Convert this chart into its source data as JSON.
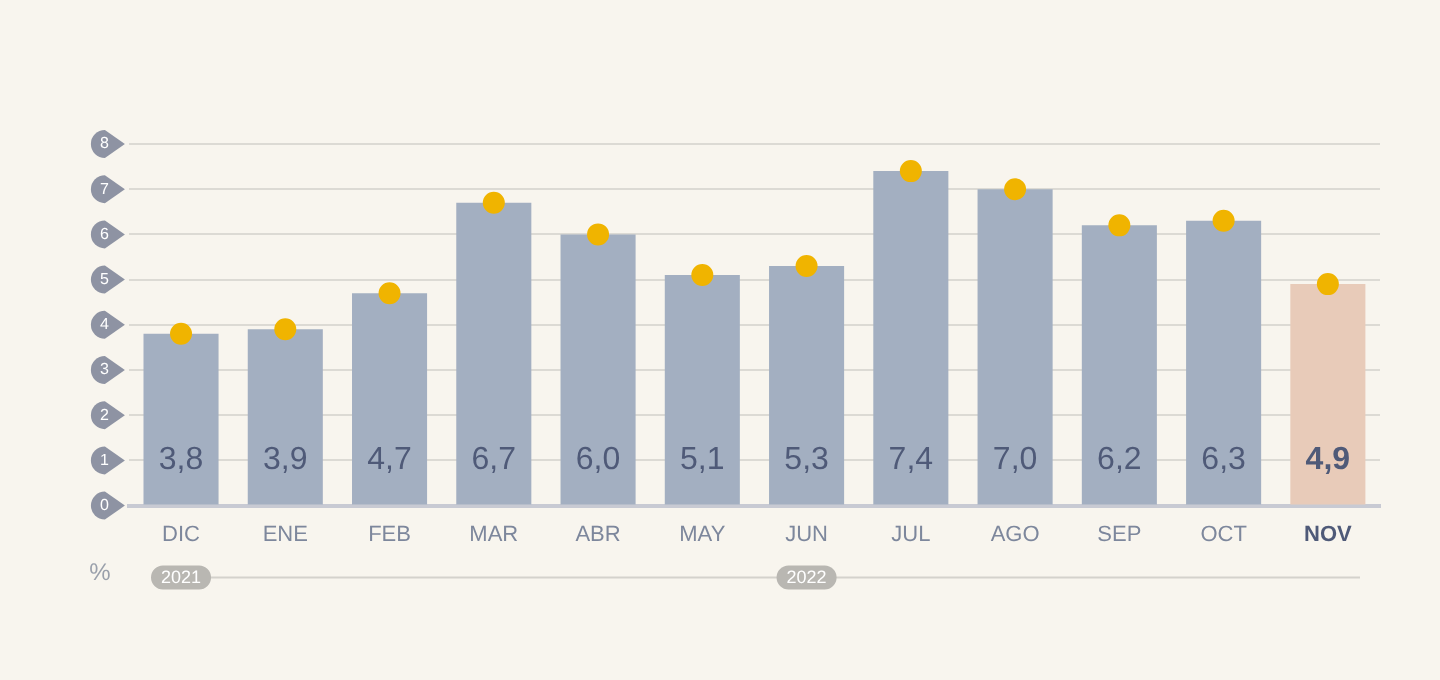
{
  "chart_data": {
    "type": "bar",
    "ylabel": "%",
    "categories": [
      "DIC",
      "ENE",
      "FEB",
      "MAR",
      "ABR",
      "MAY",
      "JUN",
      "JUL",
      "AGO",
      "SEP",
      "OCT",
      "NOV"
    ],
    "series": [
      {
        "values": [
          3.8,
          3.9,
          4.7,
          6.7,
          6.0,
          5.1,
          5.3,
          7.4,
          7.0,
          6.2,
          6.3,
          4.9
        ],
        "colors": [
          "#a3afc1",
          "#a3afc1",
          "#a3afc1",
          "#a3afc1",
          "#a3afc1",
          "#a3afc1",
          "#a3afc1",
          "#a3afc1",
          "#a3afc1",
          "#a3afc1",
          "#a3afc1",
          "#e8cbb9"
        ],
        "value_labels": [
          "3,8",
          "3,9",
          "4,7",
          "6,7",
          "6,0",
          "5,1",
          "5,3",
          "7,4",
          "7,0",
          "6,2",
          "6,3",
          "4,9"
        ]
      },
      {
        "type": "scatter",
        "color": "#f0b400",
        "x": [
          "DIC",
          "ENE",
          "FEB",
          "MAR",
          "ABR",
          "MAY",
          "JUN",
          "JUL",
          "AGO",
          "SEP",
          "OCT",
          "NOV"
        ],
        "values": [
          3.8,
          3.9,
          4.7,
          6.7,
          6.0,
          5.1,
          5.3,
          7.4,
          7.0,
          6.2,
          6.3,
          4.9
        ]
      }
    ],
    "ylim": [
      0,
      8
    ],
    "yticks": [
      0,
      1,
      2,
      3,
      4,
      5,
      6,
      7,
      8
    ],
    "grid": "y",
    "legend": false,
    "marker": "circle",
    "annotations": [
      "2021",
      "2022"
    ]
  }
}
